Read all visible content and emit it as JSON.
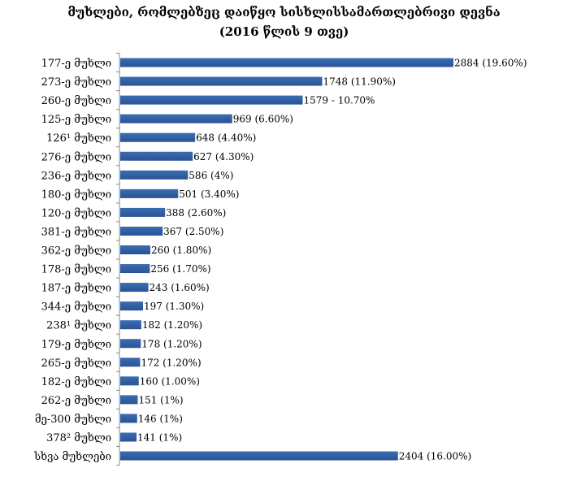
{
  "chart_data": {
    "type": "bar",
    "orientation": "horizontal",
    "title": "მუხლები, რომლებზეც დაიწყო სისხლისსამართლებრივი დევნა",
    "subtitle": "(2016 წლის 9 თვე)",
    "xlabel": "",
    "ylabel": "",
    "grid": false,
    "legend": "none",
    "bar_color": "#3a6db3",
    "bar_color_dark": "#2a5394",
    "categories": [
      "177-ე მუხლი",
      "273-ე მუხლი",
      "260-ე მუხლი",
      "125-ე მუხლი",
      "126¹ მუხლი",
      "276-ე მუხლი",
      "236-ე მუხლი",
      "180-ე მუხლი",
      "120-ე მუხლი",
      "381-ე მუხლი",
      "362-ე მუხლი",
      "178-ე მუხლი",
      "187-ე მუხლი",
      "344-ე მუხლი",
      "238¹ მუხლი",
      "179-ე მუხლი",
      "265-ე მუხლი",
      "182-ე მუხლი",
      "262-ე მუხლი",
      "მე-300 მუხლი",
      "378² მუხლი",
      "სხვა მუხლები"
    ],
    "values": [
      2884,
      1748,
      1579,
      969,
      648,
      627,
      586,
      501,
      388,
      367,
      260,
      256,
      243,
      197,
      182,
      178,
      172,
      160,
      151,
      146,
      141,
      2404
    ],
    "data_labels": [
      "2884 (19.60%)",
      "1748 (11.90%)",
      "1579 - 10.70%",
      "969 (6.60%)",
      "648 (4.40%)",
      "627 (4.30%)",
      "586 (4%)",
      "501 (3.40%)",
      "388 (2.60%)",
      "367 (2.50%)",
      "260 (1.80%)",
      "256 (1.70%)",
      "243 (1.60%)",
      "197 (1.30%)",
      "182 (1.20%)",
      "178 (1.20%)",
      "172 (1.20%)",
      "160 (1.00%)",
      "151 (1%)",
      "146 (1%)",
      "141 (1%)",
      "2404 (16.00%)"
    ],
    "xlim": [
      0,
      2884
    ]
  }
}
